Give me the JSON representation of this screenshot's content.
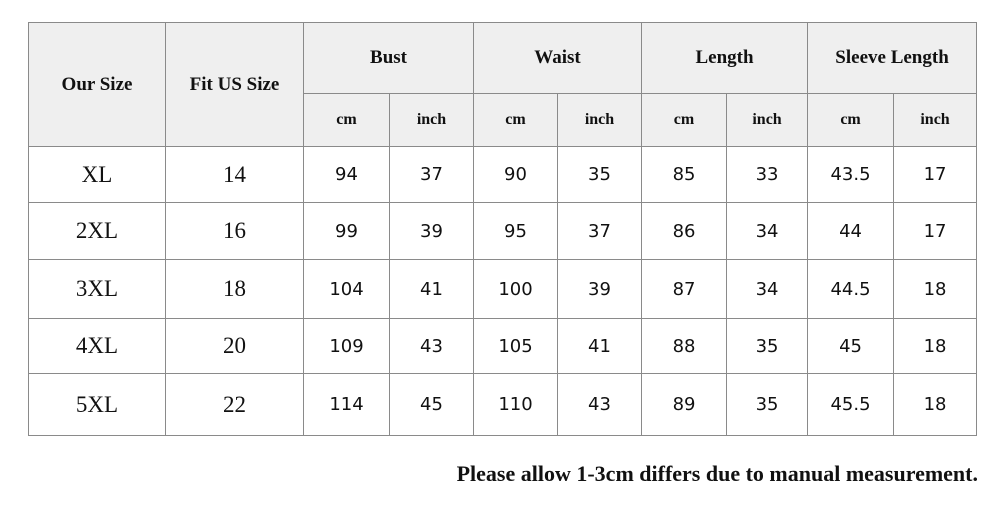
{
  "table": {
    "header": {
      "columns": [
        "Our Size",
        "Fit US Size"
      ],
      "groups": [
        "Bust",
        "Waist",
        "Length",
        "Sleeve Length"
      ],
      "units": [
        "cm",
        "inch",
        "cm",
        "inch",
        "cm",
        "inch",
        "cm",
        "inch"
      ]
    },
    "rows": [
      [
        "XL",
        "14",
        "94",
        "37",
        "90",
        "35",
        "85",
        "33",
        "43.5",
        "17"
      ],
      [
        "2XL",
        "16",
        "99",
        "39",
        "95",
        "37",
        "86",
        "34",
        "44",
        "17"
      ],
      [
        "3XL",
        "18",
        "104",
        "41",
        "100",
        "39",
        "87",
        "34",
        "44.5",
        "18"
      ],
      [
        "4XL",
        "20",
        "109",
        "43",
        "105",
        "41",
        "88",
        "35",
        "45",
        "18"
      ],
      [
        "5XL",
        "22",
        "114",
        "45",
        "110",
        "43",
        "89",
        "35",
        "45.5",
        "18"
      ]
    ]
  },
  "note": "Please allow 1-3cm differs due to manual measurement."
}
